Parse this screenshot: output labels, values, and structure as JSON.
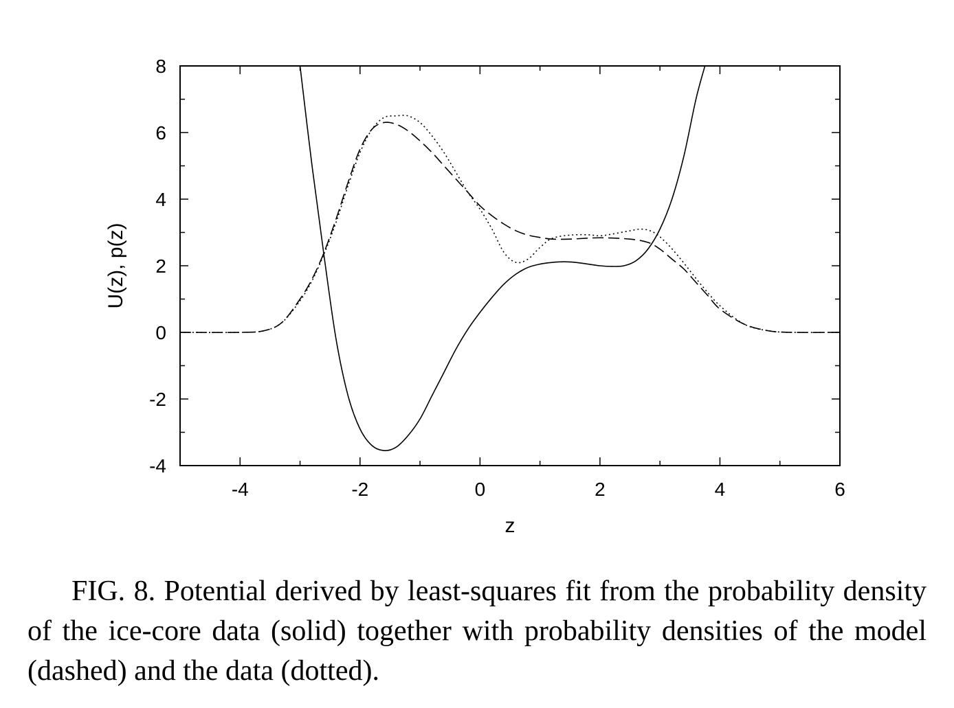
{
  "chart_data": {
    "type": "line",
    "xlabel": "z",
    "ylabel": "U(z), p(z)",
    "xlim": [
      -5,
      6
    ],
    "ylim": [
      -4,
      8
    ],
    "xticks": [
      -4,
      -2,
      0,
      2,
      4,
      6
    ],
    "yticks": [
      -4,
      -2,
      0,
      2,
      4,
      6,
      8
    ],
    "grid": false,
    "legend": "none",
    "series": [
      {
        "style": "solid",
        "x": [
          -3.0,
          -2.8,
          -2.6,
          -2.4,
          -2.2,
          -2.0,
          -1.8,
          -1.6,
          -1.4,
          -1.2,
          -1.0,
          -0.8,
          -0.6,
          -0.4,
          -0.2,
          0.0,
          0.2,
          0.4,
          0.6,
          0.8,
          1.0,
          1.2,
          1.4,
          1.6,
          1.8,
          2.0,
          2.2,
          2.4,
          2.6,
          2.8,
          3.0,
          3.2,
          3.4,
          3.6,
          3.75
        ],
        "values": [
          8.0,
          5.0,
          2.3,
          -0.2,
          -1.9,
          -2.9,
          -3.4,
          -3.55,
          -3.45,
          -3.1,
          -2.6,
          -1.9,
          -1.2,
          -0.5,
          0.1,
          0.6,
          1.05,
          1.45,
          1.75,
          1.95,
          2.05,
          2.1,
          2.12,
          2.1,
          2.05,
          2.0,
          1.98,
          2.0,
          2.15,
          2.5,
          3.1,
          4.0,
          5.3,
          7.0,
          8.0
        ]
      },
      {
        "style": "dashed",
        "x": [
          -5.0,
          -4.0,
          -3.6,
          -3.3,
          -3.0,
          -2.8,
          -2.6,
          -2.4,
          -2.2,
          -2.0,
          -1.8,
          -1.6,
          -1.4,
          -1.2,
          -1.0,
          -0.8,
          -0.6,
          -0.4,
          -0.2,
          0.0,
          0.2,
          0.4,
          0.6,
          0.8,
          1.0,
          1.2,
          1.5,
          2.0,
          2.5,
          2.8,
          3.0,
          3.2,
          3.4,
          3.6,
          3.8,
          4.0,
          4.4,
          4.8,
          5.2,
          6.0
        ],
        "values": [
          0.0,
          0.0,
          0.05,
          0.3,
          1.0,
          1.6,
          2.4,
          3.4,
          4.5,
          5.5,
          6.1,
          6.3,
          6.25,
          6.05,
          5.75,
          5.4,
          5.0,
          4.6,
          4.2,
          3.8,
          3.5,
          3.25,
          3.05,
          2.92,
          2.85,
          2.8,
          2.8,
          2.84,
          2.8,
          2.7,
          2.5,
          2.2,
          1.9,
          1.5,
          1.1,
          0.7,
          0.25,
          0.05,
          0.0,
          0.0
        ]
      },
      {
        "style": "dotted",
        "x": [
          -5.0,
          -4.0,
          -3.6,
          -3.3,
          -3.0,
          -2.8,
          -2.6,
          -2.4,
          -2.2,
          -2.0,
          -1.8,
          -1.6,
          -1.4,
          -1.2,
          -1.0,
          -0.8,
          -0.6,
          -0.4,
          -0.2,
          0.0,
          0.2,
          0.4,
          0.6,
          0.8,
          1.0,
          1.2,
          1.5,
          1.8,
          2.0,
          2.2,
          2.5,
          2.7,
          2.9,
          3.1,
          3.3,
          3.5,
          3.7,
          4.0,
          4.4,
          4.8,
          5.2,
          6.0
        ],
        "values": [
          0.0,
          0.0,
          0.05,
          0.3,
          0.95,
          1.55,
          2.35,
          3.3,
          4.4,
          5.4,
          6.1,
          6.45,
          6.5,
          6.5,
          6.3,
          5.9,
          5.4,
          4.8,
          4.2,
          3.7,
          3.1,
          2.4,
          2.1,
          2.2,
          2.55,
          2.82,
          2.92,
          2.93,
          2.9,
          2.95,
          3.05,
          3.1,
          3.0,
          2.7,
          2.3,
          1.85,
          1.4,
          0.8,
          0.25,
          0.05,
          0.0,
          0.0
        ]
      }
    ]
  },
  "caption": "FIG. 8. Potential derived by least-squares fit from the probability density of the ice-core data (solid) together with probability densities of the model (dashed) and the data (dotted)."
}
